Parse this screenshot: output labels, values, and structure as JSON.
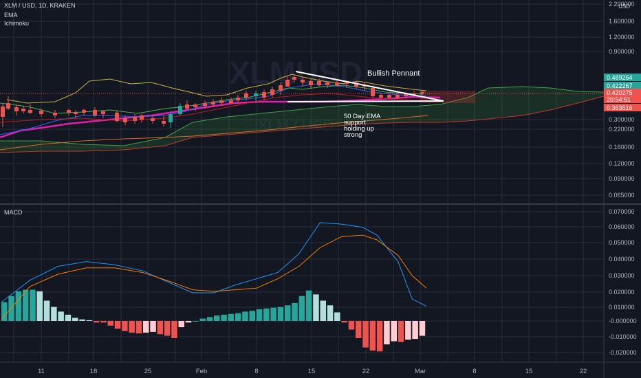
{
  "header": {
    "symbol_line": "XLM / USD, 1D, KRAKEN",
    "currency": "USD",
    "indicators": [
      "EMA",
      "Ichimoku"
    ]
  },
  "watermark": {
    "main": "XLMUSD",
    "sub": "XLM / USD"
  },
  "annotations": {
    "pennant": "Bullish Pennant",
    "support": [
      "50 Day EMA",
      "support",
      "holding up",
      "strong"
    ]
  },
  "chart_data": [
    {
      "type": "candlestick",
      "title": "XLM / USD, 1D, KRAKEN",
      "y_scale": "log",
      "y_ticks": [
        "2.200000",
        "1.600000",
        "1.200000",
        "0.900000",
        "0.489264",
        "0.422267",
        "0.420275",
        "20:54:51",
        "0.363516",
        "0.300000",
        "0.220000",
        "0.160000",
        "0.120000",
        "0.090000",
        "0.065000"
      ],
      "price_labels": [
        {
          "text": "0.489264",
          "color": "#26a69a"
        },
        {
          "text": "0.422267",
          "color": "#26a69a"
        },
        {
          "text": "0.420275",
          "color": "#ef5350"
        },
        {
          "text": "20:54:51",
          "color": "#ef5350"
        },
        {
          "text": "0.363516",
          "color": "#ef5350"
        }
      ],
      "x_ticks": [
        "11",
        "18",
        "25",
        "Feb",
        "8",
        "15",
        "22",
        "Mar",
        "8",
        "15",
        "22"
      ],
      "series": [
        {
          "name": "EMA",
          "color": "#e020a8"
        }
      ],
      "colors": {
        "up": "#26a69a",
        "down": "#ef5350",
        "conversion": "#2962ff",
        "base": "#b71c1c",
        "lagging": "#43a047",
        "kumo_bull": "#388e3c",
        "kumo_bear": "#e53935"
      }
    },
    {
      "type": "line",
      "title": "MACD",
      "y_ticks": [
        "0.070000",
        "0.060000",
        "0.050000",
        "0.040000",
        "0.030000",
        "0.020000",
        "0.010000",
        "-0.000000",
        "-0.010000",
        "-0.020000"
      ],
      "ylim": [
        -0.024,
        0.074
      ],
      "histogram": [
        0.012,
        0.016,
        0.019,
        0.02,
        0.02,
        0.019,
        0.013,
        0.009,
        0.006,
        0.004,
        0.002,
        0.001,
        0.0005,
        -0.001,
        -0.001,
        -0.003,
        -0.005,
        -0.0065,
        -0.0075,
        -0.008,
        -0.0075,
        -0.007,
        -0.0085,
        -0.0095,
        -0.011,
        -0.004,
        -0.001,
        0.0,
        0.0015,
        0.0025,
        0.0035,
        0.004,
        0.0045,
        0.005,
        0.006,
        0.0065,
        0.0075,
        0.008,
        0.0085,
        0.009,
        0.01,
        0.0115,
        0.016,
        0.0195,
        0.017,
        0.013,
        0.01,
        0.0055,
        -0.001,
        -0.0055,
        -0.011,
        -0.017,
        -0.019,
        -0.0195,
        -0.015,
        -0.013,
        -0.0135,
        -0.012,
        -0.0115,
        -0.0095
      ],
      "series": [
        {
          "name": "MACD",
          "color": "#2196f3",
          "points": [
            [
              0,
              0.012
            ],
            [
              4,
              0.026
            ],
            [
              8,
              0.035
            ],
            [
              12,
              0.038
            ],
            [
              16,
              0.036
            ],
            [
              20,
              0.032
            ],
            [
              24,
              0.024
            ],
            [
              27,
              0.018
            ],
            [
              30,
              0.018
            ],
            [
              33,
              0.023
            ],
            [
              36,
              0.027
            ],
            [
              39,
              0.031
            ],
            [
              42,
              0.043
            ],
            [
              45,
              0.063
            ],
            [
              48,
              0.062
            ],
            [
              51,
              0.06
            ],
            [
              53,
              0.055
            ],
            [
              56,
              0.038
            ],
            [
              58,
              0.014
            ],
            [
              60,
              0.0095
            ]
          ]
        },
        {
          "name": "Signal",
          "color": "#f57c00",
          "points": [
            [
              0,
              0.001
            ],
            [
              4,
              0.022
            ],
            [
              8,
              0.03
            ],
            [
              12,
              0.034
            ],
            [
              16,
              0.034
            ],
            [
              20,
              0.031
            ],
            [
              24,
              0.025
            ],
            [
              27,
              0.02
            ],
            [
              30,
              0.019
            ],
            [
              33,
              0.02
            ],
            [
              36,
              0.021
            ],
            [
              39,
              0.027
            ],
            [
              42,
              0.035
            ],
            [
              45,
              0.047
            ],
            [
              48,
              0.054
            ],
            [
              51,
              0.055
            ],
            [
              53,
              0.052
            ],
            [
              56,
              0.042
            ],
            [
              58,
              0.029
            ],
            [
              60,
              0.021
            ]
          ]
        }
      ]
    }
  ]
}
